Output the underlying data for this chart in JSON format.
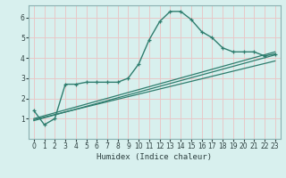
{
  "title": "",
  "xlabel": "Humidex (Indice chaleur)",
  "ylabel": "",
  "bg_color": "#d8f0ee",
  "grid_color": "#e8c8c8",
  "line_color": "#2e7d6e",
  "spine_color": "#8ab0b0",
  "xlim": [
    -0.5,
    23.5
  ],
  "ylim": [
    0,
    6.6
  ],
  "yticks": [
    1,
    2,
    3,
    4,
    5,
    6
  ],
  "xticks": [
    0,
    1,
    2,
    3,
    4,
    5,
    6,
    7,
    8,
    9,
    10,
    11,
    12,
    13,
    14,
    15,
    16,
    17,
    18,
    19,
    20,
    21,
    22,
    23
  ],
  "main_line_x": [
    0,
    1,
    2,
    3,
    4,
    5,
    6,
    7,
    8,
    9,
    10,
    11,
    12,
    13,
    14,
    15,
    16,
    17,
    18,
    19,
    20,
    21,
    22,
    23
  ],
  "main_line_y": [
    1.4,
    0.7,
    1.0,
    2.7,
    2.7,
    2.8,
    2.8,
    2.8,
    2.8,
    3.0,
    3.7,
    4.9,
    5.8,
    6.3,
    6.3,
    5.9,
    5.3,
    5.0,
    4.5,
    4.3,
    4.3,
    4.3,
    4.1,
    4.2
  ],
  "trend1_x": [
    0,
    23
  ],
  "trend1_y": [
    0.9,
    4.15
  ],
  "trend2_x": [
    0,
    23
  ],
  "trend2_y": [
    0.95,
    3.85
  ],
  "trend3_x": [
    0,
    23
  ],
  "trend3_y": [
    1.0,
    4.3
  ]
}
